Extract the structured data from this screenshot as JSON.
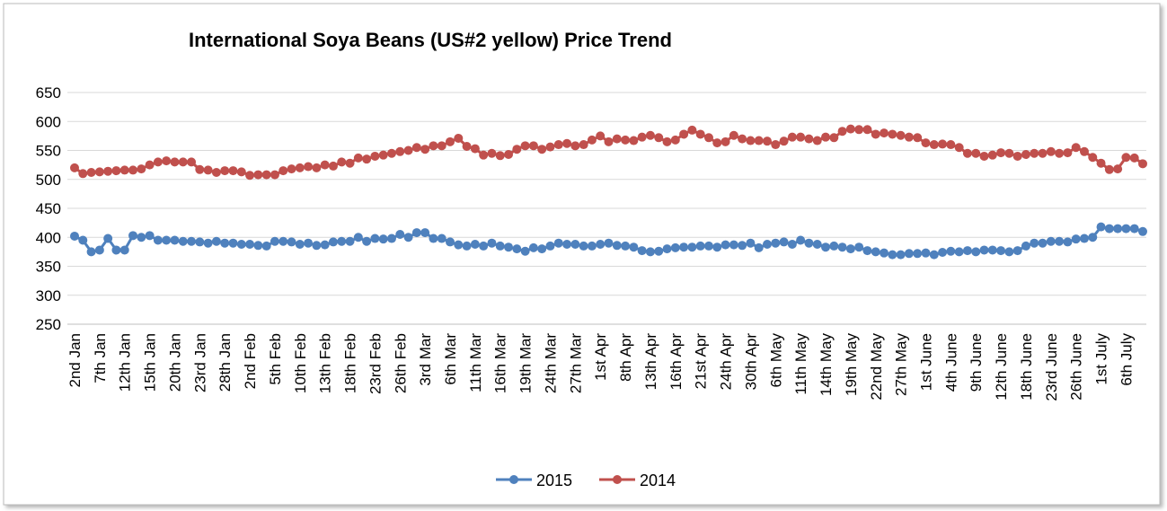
{
  "chart_data": {
    "type": "line",
    "title": "International Soya Beans (US#2 yellow) Price Trend",
    "categories": [
      "2nd Jan",
      null,
      null,
      "7th Jan",
      null,
      null,
      "12th Jan",
      null,
      null,
      "15th Jan",
      null,
      null,
      "20th Jan",
      null,
      null,
      "23rd Jan",
      null,
      null,
      "28th Jan",
      null,
      null,
      "2nd Feb",
      null,
      null,
      "5th Feb",
      null,
      null,
      "10th Feb",
      null,
      null,
      "13th Feb",
      null,
      null,
      "18th Feb",
      null,
      null,
      "23rd Feb",
      null,
      null,
      "26th Feb",
      null,
      null,
      "3rd Mar",
      null,
      null,
      "6th Mar",
      null,
      null,
      "11th Mar",
      null,
      null,
      "16th Mar",
      null,
      null,
      "19th Mar",
      null,
      null,
      "24th Mar",
      null,
      null,
      "27th Mar",
      null,
      null,
      "1st Apr",
      null,
      null,
      "8th Apr",
      null,
      null,
      "13th Apr",
      null,
      null,
      "16th Apr",
      null,
      null,
      "21st Apr",
      null,
      null,
      "24th Apr",
      null,
      null,
      "30th Apr",
      null,
      null,
      "6th May",
      null,
      null,
      "11th May",
      null,
      null,
      "14th May",
      null,
      null,
      "19th May",
      null,
      null,
      "22nd May",
      null,
      null,
      "27th May",
      null,
      null,
      "1st June",
      null,
      null,
      "4th June",
      null,
      null,
      "9th June",
      null,
      null,
      "12th June",
      null,
      null,
      "18th June",
      null,
      null,
      "23rd June",
      null,
      null,
      "26th June",
      null,
      null,
      "1st July",
      null,
      null,
      "6th July",
      null,
      null
    ],
    "series": [
      {
        "name": "2015",
        "color": "#4f81bd",
        "values": [
          402,
          395,
          375,
          378,
          398,
          378,
          378,
          403,
          400,
          403,
          395,
          395,
          395,
          393,
          393,
          392,
          390,
          393,
          390,
          390,
          388,
          388,
          386,
          385,
          393,
          393,
          392,
          388,
          390,
          386,
          387,
          392,
          393,
          393,
          400,
          393,
          398,
          397,
          398,
          405,
          400,
          408,
          408,
          398,
          398,
          392,
          387,
          385,
          388,
          385,
          390,
          385,
          383,
          380,
          376,
          382,
          380,
          385,
          390,
          388,
          388,
          385,
          385,
          388,
          390,
          386,
          385,
          383,
          377,
          375,
          376,
          380,
          382,
          383,
          383,
          385,
          385,
          383,
          387,
          387,
          386,
          390,
          382,
          388,
          390,
          392,
          388,
          395,
          390,
          388,
          383,
          385,
          383,
          380,
          383,
          377,
          375,
          373,
          370,
          370,
          372,
          372,
          373,
          370,
          374,
          376,
          375,
          377,
          375,
          378,
          378,
          377,
          375,
          377,
          385,
          390,
          390,
          393,
          393,
          392,
          397,
          398,
          400,
          418,
          415,
          415,
          415,
          415,
          410
        ]
      },
      {
        "name": "2014",
        "color": "#c0504d",
        "values": [
          520,
          510,
          512,
          513,
          514,
          515,
          516,
          516,
          518,
          525,
          530,
          532,
          530,
          530,
          530,
          517,
          516,
          512,
          515,
          515,
          513,
          507,
          508,
          508,
          508,
          515,
          518,
          520,
          522,
          520,
          525,
          523,
          530,
          528,
          537,
          535,
          540,
          542,
          545,
          548,
          550,
          555,
          552,
          558,
          558,
          565,
          571,
          557,
          553,
          542,
          545,
          541,
          543,
          552,
          558,
          558,
          552,
          556,
          560,
          562,
          558,
          560,
          568,
          575,
          565,
          570,
          568,
          567,
          573,
          576,
          572,
          565,
          568,
          578,
          585,
          578,
          572,
          563,
          565,
          576,
          570,
          567,
          567,
          566,
          560,
          566,
          573,
          573,
          570,
          567,
          573,
          572,
          583,
          587,
          586,
          586,
          578,
          580,
          578,
          576,
          573,
          572,
          563,
          560,
          561,
          560,
          555,
          545,
          545,
          540,
          542,
          546,
          545,
          540,
          543,
          545,
          545,
          548,
          545,
          546,
          555,
          548,
          538,
          528,
          517,
          518,
          538,
          537,
          527
        ]
      }
    ],
    "ylim": [
      250,
      650
    ],
    "yticks": [
      250,
      300,
      350,
      400,
      450,
      500,
      550,
      600,
      650
    ],
    "grid": true,
    "legend": "bottom"
  }
}
